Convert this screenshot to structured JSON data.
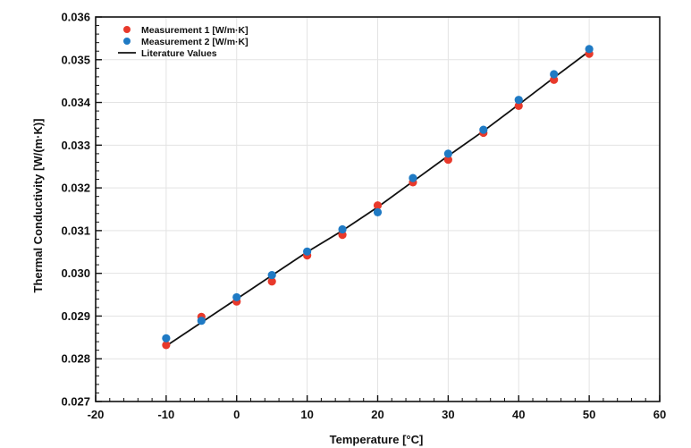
{
  "chart_data": {
    "type": "scatter",
    "title": "",
    "xlabel": "Temperature [°C]",
    "ylabel": "Thermal Conductivity [W/(m·K)]",
    "xlim": [
      -20,
      60
    ],
    "ylim": [
      0.027,
      0.036
    ],
    "x_ticks": [
      -20,
      -10,
      0,
      10,
      20,
      30,
      40,
      50,
      60
    ],
    "x_tick_labels": [
      "-20",
      "-10",
      "0",
      "10",
      "20",
      "30",
      "40",
      "50",
      "60"
    ],
    "y_ticks": [
      0.027,
      0.028,
      0.029,
      0.03,
      0.031,
      0.032,
      0.033,
      0.034,
      0.035,
      0.036
    ],
    "y_tick_labels": [
      "0.027",
      "0.028",
      "0.029",
      "0.030",
      "0.031",
      "0.032",
      "0.033",
      "0.034",
      "0.035",
      "0.036"
    ],
    "grid": true,
    "legend_position": "top-left",
    "series": [
      {
        "name": "Measurement 1 [W/m·K]",
        "kind": "scatter",
        "color": "#e8392b",
        "x": [
          -10,
          -5,
          0,
          5,
          10,
          15,
          20,
          25,
          30,
          35,
          40,
          45,
          50
        ],
        "y": [
          0.02832,
          0.02898,
          0.02934,
          0.02981,
          0.03042,
          0.0309,
          0.03159,
          0.03213,
          0.03266,
          0.03329,
          0.03392,
          0.03453,
          0.03514
        ]
      },
      {
        "name": "Measurement 2 [W/m·K]",
        "kind": "scatter",
        "color": "#1f7ac4",
        "x": [
          -10,
          -5,
          0,
          5,
          10,
          15,
          20,
          25,
          30,
          35,
          40,
          45,
          50
        ],
        "y": [
          0.02848,
          0.02889,
          0.02944,
          0.02996,
          0.03051,
          0.03103,
          0.03143,
          0.03223,
          0.0328,
          0.03336,
          0.03406,
          0.03466,
          0.03525
        ]
      },
      {
        "name": "Literature Values",
        "kind": "line",
        "color": "#111111",
        "x": [
          -10,
          -5,
          0,
          5,
          10,
          15,
          20,
          25,
          30,
          35,
          40,
          45,
          50
        ],
        "y": [
          0.0283,
          0.02885,
          0.0294,
          0.02995,
          0.0305,
          0.031,
          0.03155,
          0.03215,
          0.03275,
          0.03333,
          0.03395,
          0.03458,
          0.0352
        ]
      }
    ]
  }
}
